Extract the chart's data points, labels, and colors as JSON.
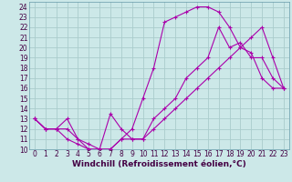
{
  "xlabel": "Windchill (Refroidissement éolien,°C)",
  "bg_color": "#cce8e8",
  "grid_color": "#aacccc",
  "line_color": "#aa00aa",
  "marker": "+",
  "xlim": [
    -0.5,
    23.5
  ],
  "ylim": [
    10,
    24.5
  ],
  "xticks": [
    0,
    1,
    2,
    3,
    4,
    5,
    6,
    7,
    8,
    9,
    10,
    11,
    12,
    13,
    14,
    15,
    16,
    17,
    18,
    19,
    20,
    21,
    22,
    23
  ],
  "yticks": [
    10,
    11,
    12,
    13,
    14,
    15,
    16,
    17,
    18,
    19,
    20,
    21,
    22,
    23,
    24
  ],
  "series1_x": [
    0,
    1,
    2,
    3,
    4,
    5,
    6,
    7,
    8,
    9,
    10,
    11,
    12,
    13,
    14,
    15,
    16,
    17,
    18,
    19,
    20,
    21,
    22,
    23
  ],
  "series1_y": [
    13,
    12,
    12,
    12,
    11,
    10,
    10,
    10,
    11,
    11,
    11,
    12,
    13,
    14,
    15,
    16,
    17,
    18,
    19,
    20,
    21,
    22,
    19,
    16
  ],
  "series2_x": [
    0,
    1,
    2,
    3,
    4,
    5,
    6,
    7,
    8,
    9,
    10,
    11,
    12,
    13,
    14,
    15,
    16,
    17,
    18,
    19,
    20,
    21,
    22,
    23
  ],
  "series2_y": [
    13,
    12,
    12,
    11,
    10.5,
    10,
    10,
    10,
    11,
    12,
    15,
    18,
    22.5,
    23,
    23.5,
    24,
    24,
    23.5,
    22,
    20,
    19.5,
    17,
    16,
    16
  ],
  "series3_x": [
    0,
    1,
    2,
    3,
    4,
    5,
    6,
    7,
    8,
    9,
    10,
    11,
    12,
    13,
    14,
    15,
    16,
    17,
    18,
    19,
    20,
    21,
    22,
    23
  ],
  "series3_y": [
    13,
    12,
    12,
    13,
    11,
    10.5,
    10,
    13.5,
    12,
    11,
    11,
    13,
    14,
    15,
    17,
    18,
    19,
    22,
    20,
    20.5,
    19,
    19,
    17,
    16
  ],
  "tick_fontsize": 5.5,
  "xlabel_fontsize": 6.5
}
